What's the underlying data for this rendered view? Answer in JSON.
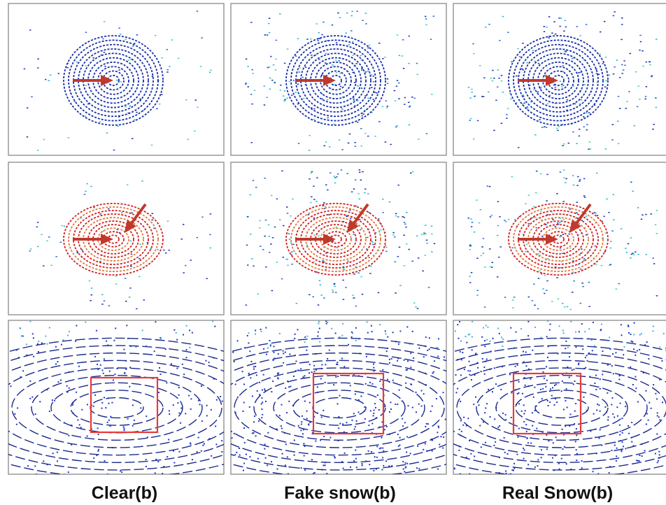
{
  "captions": [
    "Clear(b)",
    "Fake snow(b)",
    "Real Snow(b)"
  ]
}
